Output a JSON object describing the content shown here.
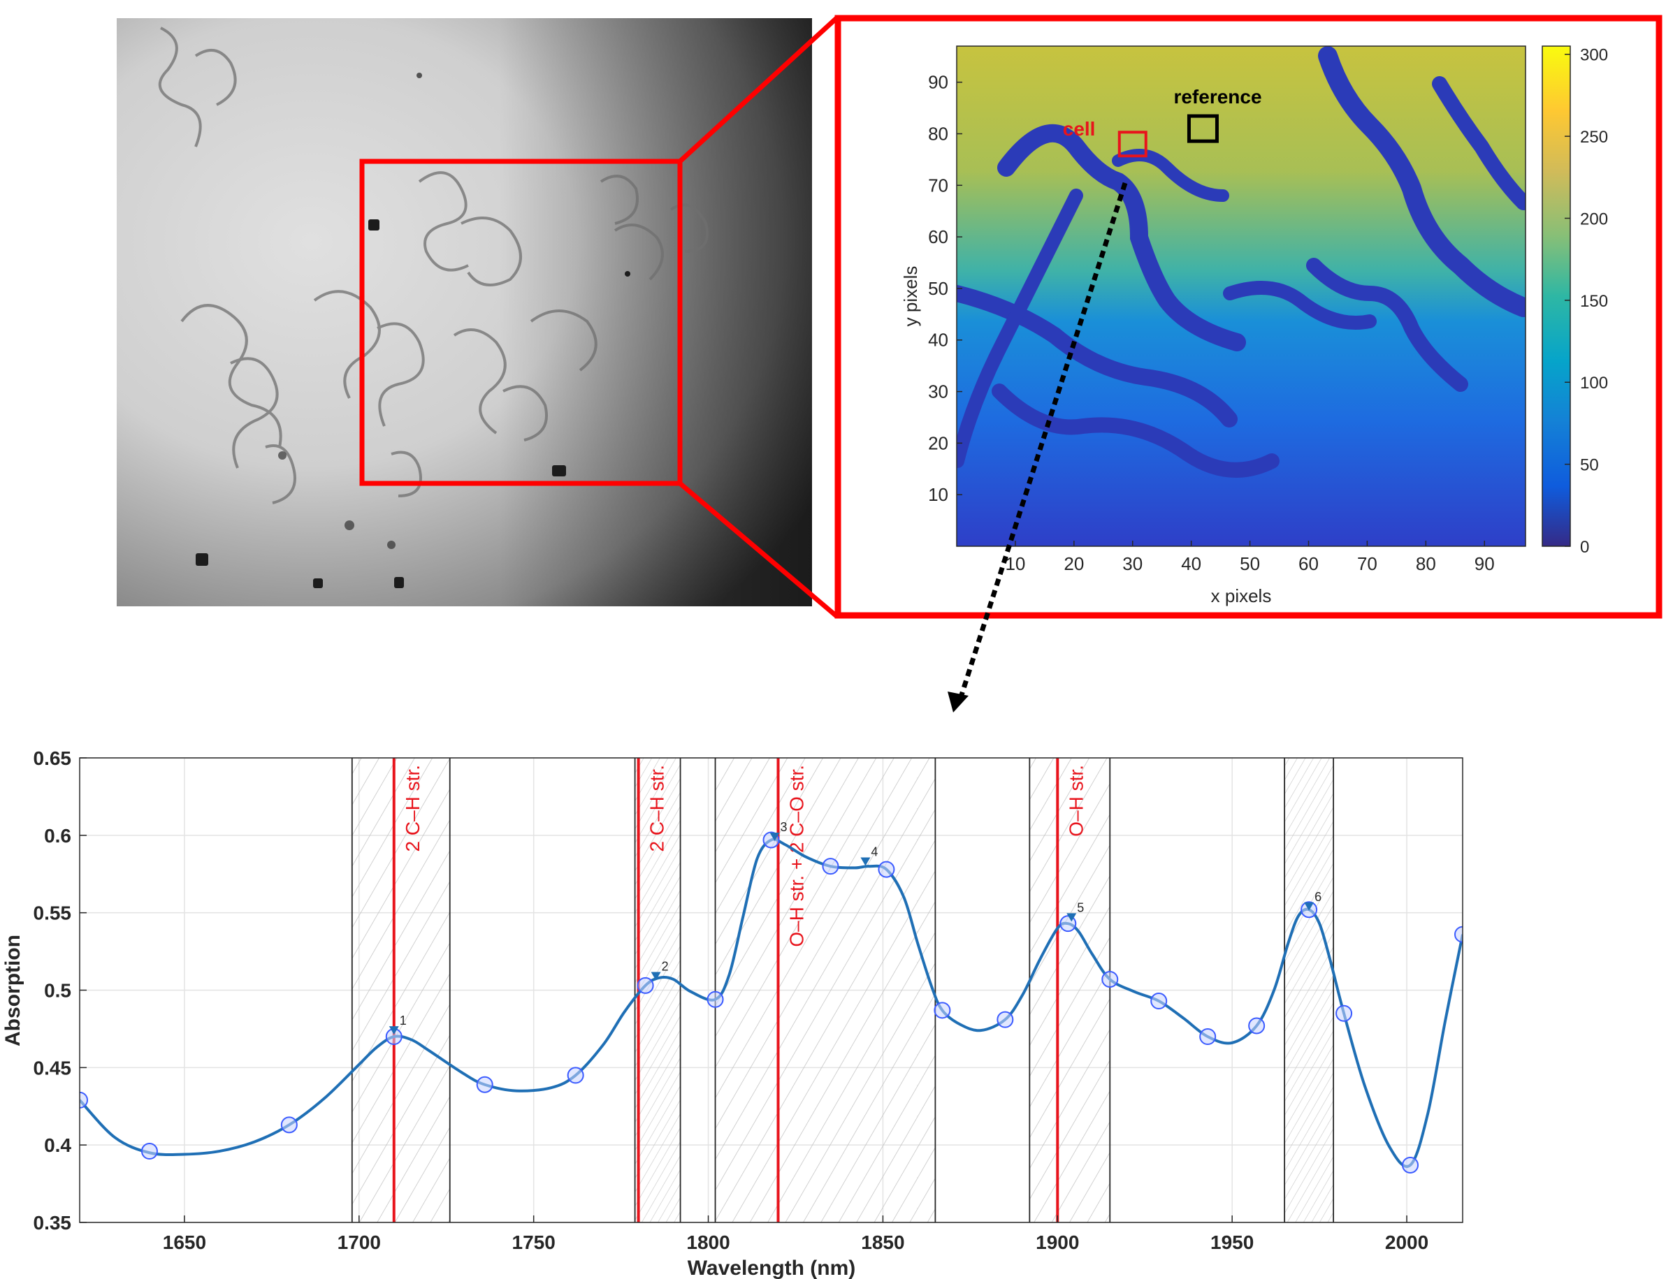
{
  "micrograph": {
    "zoom_box_color": "#ff0000"
  },
  "heatmap_panel": {
    "border_color": "#ff0000",
    "xlabel": "x pixels",
    "ylabel": "y pixels",
    "x_ticks": [
      10,
      20,
      30,
      40,
      50,
      60,
      70,
      80,
      90
    ],
    "y_ticks": [
      10,
      20,
      30,
      40,
      50,
      60,
      70,
      80,
      90
    ],
    "xlim": [
      0,
      97
    ],
    "ylim": [
      0,
      97
    ],
    "colorbar_ticks": [
      0,
      50,
      100,
      150,
      200,
      250,
      300
    ],
    "colorbar_range": [
      0,
      305
    ],
    "colormap": "parula",
    "cell_label": "cell",
    "cell_color": "#e8141c",
    "cell_box_center": [
      30,
      78
    ],
    "reference_label": "reference",
    "reference_color": "#000000",
    "reference_box_center": [
      42,
      81
    ]
  },
  "chart_data": {
    "type": "line",
    "xlabel": "Wavelength (nm)",
    "ylabel": "Absorption",
    "xlim": [
      1620,
      2016
    ],
    "ylim": [
      0.35,
      0.65
    ],
    "x_ticks": [
      1650,
      1700,
      1750,
      1800,
      1850,
      1900,
      1950,
      2000
    ],
    "y_ticks": [
      "0.35",
      "0.4",
      "0.45",
      "0.5",
      "0.55",
      "0.6",
      "0.65"
    ],
    "grid": true,
    "line_color": "#1f6fb5",
    "marker_color": "#3b5bff",
    "measured_points": {
      "x": [
        1620,
        1640,
        1680,
        1710,
        1736,
        1762,
        1782,
        1802,
        1818,
        1835,
        1851,
        1867,
        1885,
        1903,
        1915,
        1929,
        1943,
        1957,
        1972,
        1982,
        2001,
        2016
      ],
      "y": [
        0.429,
        0.396,
        0.413,
        0.47,
        0.439,
        0.445,
        0.503,
        0.494,
        0.597,
        0.58,
        0.578,
        0.487,
        0.481,
        0.543,
        0.507,
        0.493,
        0.47,
        0.477,
        0.552,
        0.485,
        0.387,
        0.536
      ]
    },
    "fitted_curve": {
      "x": [
        1620,
        1630,
        1640,
        1650,
        1660,
        1670,
        1680,
        1690,
        1700,
        1705,
        1710,
        1715,
        1720,
        1730,
        1736,
        1745,
        1755,
        1762,
        1770,
        1776,
        1782,
        1786,
        1790,
        1795,
        1802,
        1806,
        1810,
        1814,
        1818,
        1822,
        1828,
        1835,
        1842,
        1846,
        1851,
        1856,
        1860,
        1864,
        1867,
        1872,
        1878,
        1885,
        1890,
        1895,
        1900,
        1903,
        1906,
        1910,
        1915,
        1922,
        1929,
        1936,
        1943,
        1950,
        1957,
        1962,
        1966,
        1969,
        1972,
        1975,
        1978,
        1982,
        1988,
        1995,
        2001,
        2006,
        2011,
        2016
      ],
      "y": [
        0.429,
        0.405,
        0.395,
        0.394,
        0.396,
        0.402,
        0.413,
        0.43,
        0.452,
        0.463,
        0.47,
        0.468,
        0.461,
        0.446,
        0.439,
        0.435,
        0.437,
        0.445,
        0.465,
        0.486,
        0.503,
        0.508,
        0.507,
        0.499,
        0.494,
        0.51,
        0.548,
        0.585,
        0.597,
        0.594,
        0.586,
        0.58,
        0.579,
        0.58,
        0.578,
        0.56,
        0.53,
        0.502,
        0.487,
        0.478,
        0.474,
        0.481,
        0.497,
        0.52,
        0.54,
        0.543,
        0.538,
        0.523,
        0.507,
        0.499,
        0.493,
        0.482,
        0.47,
        0.466,
        0.477,
        0.5,
        0.53,
        0.548,
        0.552,
        0.543,
        0.52,
        0.485,
        0.438,
        0.399,
        0.387,
        0.42,
        0.48,
        0.536
      ]
    },
    "peaks": [
      {
        "label": "1",
        "x": 1710,
        "y": 0.474
      },
      {
        "label": "2",
        "x": 1785,
        "y": 0.509
      },
      {
        "label": "3",
        "x": 1819,
        "y": 0.599
      },
      {
        "label": "4",
        "x": 1845,
        "y": 0.583
      },
      {
        "label": "5",
        "x": 1904,
        "y": 0.547
      },
      {
        "label": "6",
        "x": 1972,
        "y": 0.554
      }
    ],
    "bands": [
      {
        "x0": 1698,
        "x1": 1726
      },
      {
        "x0": 1779,
        "x1": 1792
      },
      {
        "x0": 1802,
        "x1": 1865
      },
      {
        "x0": 1892,
        "x1": 1915
      },
      {
        "x0": 1965,
        "x1": 1979
      }
    ],
    "assignments": [
      {
        "x": 1710,
        "text": "2 C–H str."
      },
      {
        "x": 1780,
        "text": "2 C–H str."
      },
      {
        "x": 1820,
        "text": "O–H str. + 2 C–O str."
      },
      {
        "x": 1900,
        "text": "O–H str."
      }
    ],
    "assignment_color": "#e8141c"
  }
}
